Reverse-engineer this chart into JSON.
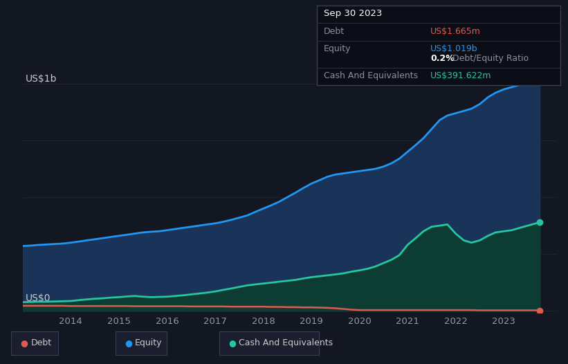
{
  "bg_color": "#131722",
  "plot_bg_color": "#131722",
  "grid_color": "#1e2333",
  "debt_color": "#e05a4e",
  "equity_color": "#2196f3",
  "cash_color": "#26c6a2",
  "equity_fill_color": "#1a3358",
  "cash_fill_color": "#0d3d32",
  "x_ticks": [
    "2014",
    "2015",
    "2016",
    "2017",
    "2018",
    "2019",
    "2020",
    "2021",
    "2022",
    "2023"
  ],
  "years": [
    2013.0,
    2013.17,
    2013.33,
    2013.5,
    2013.67,
    2013.83,
    2014.0,
    2014.17,
    2014.33,
    2014.5,
    2014.67,
    2014.83,
    2015.0,
    2015.17,
    2015.33,
    2015.5,
    2015.67,
    2015.83,
    2016.0,
    2016.17,
    2016.33,
    2016.5,
    2016.67,
    2016.83,
    2017.0,
    2017.17,
    2017.33,
    2017.5,
    2017.67,
    2017.83,
    2018.0,
    2018.17,
    2018.33,
    2018.5,
    2018.67,
    2018.83,
    2019.0,
    2019.17,
    2019.33,
    2019.5,
    2019.67,
    2019.83,
    2020.0,
    2020.17,
    2020.33,
    2020.5,
    2020.67,
    2020.83,
    2021.0,
    2021.17,
    2021.33,
    2021.5,
    2021.67,
    2021.83,
    2022.0,
    2022.17,
    2022.33,
    2022.5,
    2022.67,
    2022.83,
    2023.0,
    2023.17,
    2023.33,
    2023.5,
    2023.67,
    2023.75
  ],
  "equity": [
    0.285,
    0.287,
    0.29,
    0.292,
    0.294,
    0.296,
    0.3,
    0.305,
    0.31,
    0.315,
    0.32,
    0.325,
    0.33,
    0.335,
    0.34,
    0.345,
    0.348,
    0.35,
    0.355,
    0.36,
    0.365,
    0.37,
    0.375,
    0.38,
    0.385,
    0.392,
    0.4,
    0.41,
    0.42,
    0.435,
    0.45,
    0.465,
    0.48,
    0.5,
    0.52,
    0.54,
    0.56,
    0.575,
    0.59,
    0.6,
    0.605,
    0.61,
    0.615,
    0.62,
    0.625,
    0.635,
    0.65,
    0.67,
    0.7,
    0.73,
    0.76,
    0.8,
    0.84,
    0.86,
    0.87,
    0.88,
    0.89,
    0.91,
    0.94,
    0.96,
    0.975,
    0.985,
    0.995,
    1.005,
    1.015,
    1.019
  ],
  "cash": [
    0.038,
    0.039,
    0.04,
    0.04,
    0.041,
    0.042,
    0.043,
    0.047,
    0.05,
    0.053,
    0.055,
    0.058,
    0.06,
    0.063,
    0.065,
    0.062,
    0.06,
    0.061,
    0.062,
    0.065,
    0.068,
    0.072,
    0.076,
    0.08,
    0.085,
    0.092,
    0.098,
    0.105,
    0.112,
    0.116,
    0.12,
    0.124,
    0.128,
    0.132,
    0.136,
    0.142,
    0.148,
    0.152,
    0.156,
    0.16,
    0.165,
    0.172,
    0.178,
    0.185,
    0.195,
    0.21,
    0.225,
    0.245,
    0.29,
    0.32,
    0.35,
    0.37,
    0.375,
    0.38,
    0.34,
    0.31,
    0.3,
    0.31,
    0.33,
    0.345,
    0.35,
    0.355,
    0.365,
    0.375,
    0.385,
    0.3916
  ],
  "debt": [
    0.022,
    0.022,
    0.022,
    0.022,
    0.022,
    0.022,
    0.021,
    0.021,
    0.021,
    0.021,
    0.021,
    0.021,
    0.021,
    0.021,
    0.02,
    0.02,
    0.02,
    0.02,
    0.02,
    0.02,
    0.02,
    0.019,
    0.019,
    0.019,
    0.019,
    0.019,
    0.018,
    0.018,
    0.018,
    0.018,
    0.018,
    0.017,
    0.017,
    0.016,
    0.016,
    0.015,
    0.015,
    0.014,
    0.013,
    0.011,
    0.008,
    0.005,
    0.003,
    0.003,
    0.003,
    0.003,
    0.003,
    0.003,
    0.003,
    0.003,
    0.003,
    0.003,
    0.003,
    0.003,
    0.003,
    0.003,
    0.003,
    0.002,
    0.002,
    0.002,
    0.002,
    0.002,
    0.002,
    0.002,
    0.002,
    0.001665
  ],
  "tooltip_bg": "#0b0e17",
  "tooltip_border": "#2a2e3a",
  "tooltip_title": "Sep 30 2023",
  "tooltip_debt_label": "Debt",
  "tooltip_debt_value": "US$1.665m",
  "tooltip_equity_label": "Equity",
  "tooltip_equity_value": "US$1.019b",
  "tooltip_ratio_value": "0.2%",
  "tooltip_ratio_label": "Debt/Equity Ratio",
  "tooltip_cash_label": "Cash And Equivalents",
  "tooltip_cash_value": "US$391.622m",
  "legend_debt": "Debt",
  "legend_equity": "Equity",
  "legend_cash": "Cash And Equivalents",
  "title_label": "US$1b",
  "zero_label": "US$0"
}
